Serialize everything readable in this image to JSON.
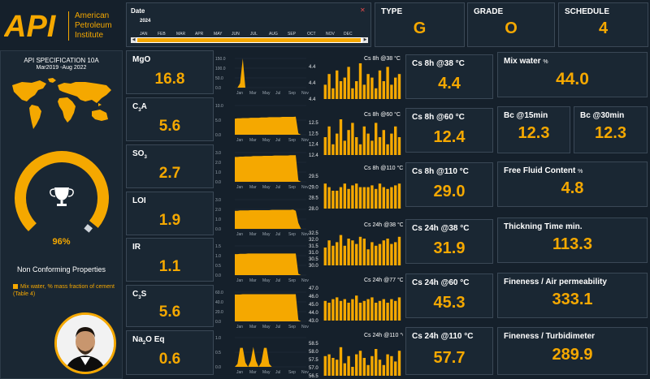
{
  "brand": {
    "logo_text": "API",
    "name_lines": [
      "American",
      "Petroleum",
      "Institute"
    ]
  },
  "date_filter": {
    "label": "Date",
    "year": "2024",
    "months": [
      "JAN",
      "FEB",
      "MAR",
      "APR",
      "MAY",
      "JUN",
      "JUL",
      "AUG",
      "SEP",
      "OCT",
      "NOV",
      "DEC"
    ]
  },
  "cards_top": [
    {
      "label": "TYPE",
      "value": "G"
    },
    {
      "label": "GRADE",
      "value": "O"
    },
    {
      "label": "SCHEDULE",
      "value": "4"
    }
  ],
  "spec": {
    "title": "API SPECIFICATION 10A",
    "period": "Mar2019 -Aug 2022"
  },
  "gauge": {
    "value_label": "96%",
    "fraction": 0.96
  },
  "nonconforming": {
    "title": "Non Conforming Properties",
    "items": [
      "Mix water, % mass fraction of cement (Table 4)"
    ]
  },
  "chemistry": [
    {
      "label": "MgO",
      "value": "16.8",
      "y_ticks": [
        "150.0",
        "100.0",
        "50.0",
        "0.0"
      ],
      "x_ticks": [
        "Jan",
        "Mar",
        "May",
        "Jul",
        "Sep",
        "Nov"
      ],
      "area": [
        0,
        0,
        15,
        100,
        0,
        0,
        0,
        0,
        0,
        0,
        0,
        0,
        0,
        0,
        0,
        0,
        0,
        0,
        0,
        0,
        0,
        0,
        0,
        0,
        0,
        0,
        0,
        0
      ]
    },
    {
      "label": "C3A",
      "value": "5.6",
      "y_ticks": [
        "10.0",
        "5.0",
        "0.0"
      ],
      "x_ticks": [
        "Jan",
        "Mar",
        "May",
        "Jul",
        "Sep",
        "Nov"
      ],
      "area": [
        55,
        56,
        56,
        57,
        57,
        57,
        58,
        58,
        58,
        58,
        59,
        59,
        59,
        60,
        60,
        60,
        60,
        60,
        61,
        61,
        61,
        61,
        61,
        62,
        5,
        0,
        0,
        0
      ]
    },
    {
      "label": "SO3",
      "value": "2.7",
      "y_ticks": [
        "3.0",
        "2.0",
        "1.0",
        "0.0"
      ],
      "x_ticks": [
        "Jan",
        "Mar",
        "May",
        "Jul",
        "Sep",
        "Nov"
      ],
      "area": [
        85,
        85,
        86,
        86,
        87,
        87,
        87,
        88,
        88,
        88,
        88,
        89,
        89,
        89,
        89,
        90,
        90,
        90,
        90,
        90,
        90,
        91,
        91,
        91,
        5,
        0,
        0,
        0
      ]
    },
    {
      "label": "LOI",
      "value": "1.9",
      "y_ticks": [
        "3.0",
        "2.0",
        "1.0",
        "0.0"
      ],
      "x_ticks": [
        "Jan",
        "Mar",
        "May",
        "Jul",
        "Sep",
        "Nov"
      ],
      "area": [
        62,
        62,
        63,
        63,
        63,
        63,
        64,
        64,
        64,
        64,
        64,
        64,
        64,
        64,
        65,
        65,
        65,
        65,
        65,
        65,
        65,
        65,
        66,
        62,
        20,
        0,
        0,
        0
      ]
    },
    {
      "label": "IR",
      "value": "1.1",
      "y_ticks": [
        "1.5",
        "1.0",
        "0.5",
        "0.0"
      ],
      "x_ticks": [
        "Jan",
        "Mar",
        "May",
        "Jul",
        "Sep",
        "Nov"
      ],
      "area": [
        72,
        72,
        73,
        73,
        73,
        74,
        74,
        74,
        74,
        74,
        74,
        74,
        74,
        74,
        74,
        74,
        74,
        74,
        74,
        74,
        74,
        74,
        74,
        74,
        5,
        0,
        0,
        0
      ]
    },
    {
      "label": "C3S",
      "value": "5.6",
      "y_ticks": [
        "60.0",
        "40.0",
        "20.0",
        "0.0"
      ],
      "x_ticks": [
        "Jan",
        "Mar",
        "May",
        "Jul",
        "Sep",
        "Nov"
      ],
      "area": [
        92,
        92,
        92,
        93,
        93,
        93,
        93,
        93,
        93,
        93,
        93,
        93,
        93,
        93,
        93,
        93,
        93,
        93,
        93,
        93,
        93,
        93,
        93,
        93,
        5,
        0,
        0,
        0
      ]
    },
    {
      "label": "Na2O Eq",
      "value": "0.6",
      "y_ticks": [
        "1.0",
        "0.5",
        "0.0"
      ],
      "x_ticks": [
        "Jan",
        "Mar",
        "May",
        "Jul",
        "Sep",
        "Nov"
      ],
      "area": [
        0,
        10,
        65,
        65,
        15,
        0,
        20,
        68,
        20,
        0,
        15,
        65,
        65,
        10,
        0,
        0,
        0,
        0,
        0,
        0,
        0,
        0,
        0,
        0,
        0,
        0,
        0,
        0
      ]
    }
  ],
  "bar_charts": [
    {
      "title": "Cs 8h @38 °C",
      "y_ticks": [
        "4.4",
        "4.4",
        "4.4"
      ],
      "bars": [
        0.4,
        0.7,
        0.3,
        0.8,
        0.5,
        0.6,
        0.9,
        0.3,
        0.5,
        1.0,
        0.4,
        0.7,
        0.6,
        0.3,
        0.8,
        0.5,
        0.9,
        0.4,
        0.6,
        0.7
      ]
    },
    {
      "title": "Cs 8h @60 °C",
      "y_ticks": [
        "12.5",
        "12.5",
        "12.4",
        "12.4"
      ],
      "bars": [
        0.5,
        0.8,
        0.3,
        0.6,
        1.0,
        0.4,
        0.7,
        0.9,
        0.5,
        0.3,
        0.8,
        0.6,
        0.4,
        0.9,
        0.5,
        0.7,
        0.3,
        0.6,
        0.8,
        0.5
      ]
    },
    {
      "title": "Cs 8h @110 °C",
      "y_ticks": [
        "29.5",
        "29.0",
        "28.5",
        "28.0"
      ],
      "bars": [
        0.7,
        0.6,
        0.5,
        0.5,
        0.6,
        0.7,
        0.55,
        0.65,
        0.7,
        0.6,
        0.6,
        0.6,
        0.65,
        0.55,
        0.7,
        0.6,
        0.55,
        0.6,
        0.65,
        0.7
      ]
    },
    {
      "title": "Cs 24h @38 °C",
      "y_ticks": [
        "32.5",
        "32.0",
        "31.5",
        "31.0",
        "30.5",
        "30.0"
      ],
      "bars": [
        0.5,
        0.7,
        0.55,
        0.65,
        0.85,
        0.55,
        0.75,
        0.7,
        0.6,
        0.8,
        0.75,
        0.45,
        0.65,
        0.55,
        0.6,
        0.7,
        0.75,
        0.6,
        0.65,
        0.8
      ]
    },
    {
      "title": "Cs 24h @77 °C",
      "y_ticks": [
        "47.0",
        "46.0",
        "45.0",
        "44.0",
        "43.0"
      ],
      "bars": [
        0.55,
        0.5,
        0.6,
        0.65,
        0.55,
        0.6,
        0.5,
        0.6,
        0.7,
        0.5,
        0.55,
        0.6,
        0.65,
        0.5,
        0.55,
        0.6,
        0.5,
        0.6,
        0.55,
        0.65
      ]
    },
    {
      "title": "Cs 24h @110 °C",
      "y_ticks": [
        "58.5",
        "58.0",
        "57.5",
        "57.0",
        "56.5"
      ],
      "bars": [
        0.55,
        0.6,
        0.5,
        0.45,
        0.8,
        0.35,
        0.55,
        0.25,
        0.6,
        0.7,
        0.5,
        0.3,
        0.55,
        0.75,
        0.45,
        0.3,
        0.6,
        0.55,
        0.4,
        0.7
      ]
    }
  ],
  "strength_cards": [
    {
      "label": "Cs 8h @38 °C",
      "value": "4.4"
    },
    {
      "label": "Cs 8h @60 °C",
      "value": "12.4"
    },
    {
      "label": "Cs 8h @110 °C",
      "value": "29.0"
    },
    {
      "label": "Cs 24h @38 °C",
      "value": "31.9"
    },
    {
      "label": "Cs 24h @60 °C",
      "value": "45.3"
    },
    {
      "label": "Cs 24h @110 °C",
      "value": "57.7"
    }
  ],
  "property_cards": {
    "mix_water": {
      "label": "Mix water",
      "unit": "%",
      "value": "44.0"
    },
    "bc15": {
      "label": "Bc @15min",
      "value": "12.3"
    },
    "bc30": {
      "label": "Bc @30min",
      "value": "12.3"
    },
    "free_fluid": {
      "label": "Free Fluid Content",
      "unit": "%",
      "value": "4.8"
    },
    "thickening": {
      "label": "Thickning Time min.",
      "value": "113.3"
    },
    "air_perm": {
      "label": "Fineness / Air permeability",
      "value": "333.1"
    },
    "turbidimeter": {
      "label": "Fineness / Turbidimeter",
      "value": "289.9"
    }
  },
  "colors": {
    "accent": "#f5a800",
    "panel": "#1a2733",
    "background": "#15202b",
    "border": "#3a4856"
  }
}
